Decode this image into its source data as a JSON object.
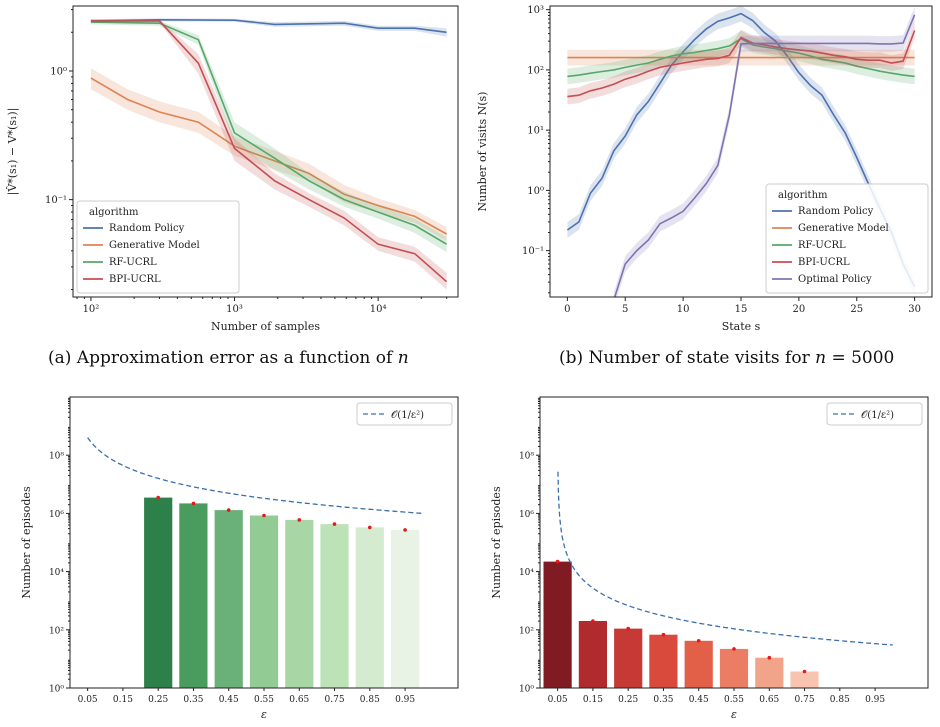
{
  "captions": {
    "a": {
      "prefix": "(a) Approximation error as a function of ",
      "var": "n",
      "suffix": ""
    },
    "b": {
      "prefix": "(b) Number of state visits for ",
      "var": "n",
      "suffix": " = 5000"
    }
  },
  "chart_data": [
    {
      "id": "a",
      "type": "line",
      "xlabel": "Number of samples",
      "ylabel": "|V̂*(s₁) − V*(s₁)|",
      "xscale": "log",
      "yscale": "log",
      "xlim": [
        75,
        36000
      ],
      "ylim": [
        0.0175,
        3.2
      ],
      "xticks": [
        100,
        1000,
        10000
      ],
      "xticklabels": [
        "10²",
        "10³",
        "10⁴"
      ],
      "yticks": [
        0.1,
        1
      ],
      "yticklabels": [
        "10⁻¹",
        "10⁰"
      ],
      "legend": {
        "title": "algorithm",
        "placement": "lower-left"
      },
      "series": [
        {
          "name": "Random Policy",
          "color": "#4c72b0",
          "x": [
            100,
            300,
            1000,
            1900,
            5800,
            10000,
            18000,
            30000
          ],
          "y": [
            2.45,
            2.5,
            2.48,
            2.3,
            2.35,
            2.15,
            2.15,
            2.0
          ],
          "lo": [
            2.38,
            2.43,
            2.41,
            2.2,
            2.25,
            2.05,
            2.05,
            1.85
          ],
          "hi": [
            2.52,
            2.57,
            2.55,
            2.4,
            2.45,
            2.25,
            2.25,
            2.15
          ]
        },
        {
          "name": "Generative Model",
          "color": "#dd8452",
          "x": [
            100,
            180,
            300,
            560,
            1000,
            1900,
            3300,
            5800,
            10000,
            18000,
            30000
          ],
          "y": [
            0.88,
            0.6,
            0.48,
            0.4,
            0.26,
            0.2,
            0.16,
            0.11,
            0.09,
            0.074,
            0.054
          ],
          "lo": [
            0.72,
            0.5,
            0.4,
            0.33,
            0.22,
            0.17,
            0.14,
            0.095,
            0.079,
            0.066,
            0.048
          ],
          "hi": [
            1.05,
            0.72,
            0.58,
            0.48,
            0.31,
            0.24,
            0.19,
            0.13,
            0.102,
            0.083,
            0.061
          ]
        },
        {
          "name": "RF-UCRL",
          "color": "#55a868",
          "x": [
            100,
            300,
            560,
            1000,
            1900,
            3300,
            5800,
            10000,
            18000,
            30000
          ],
          "y": [
            2.4,
            2.35,
            1.75,
            0.33,
            0.21,
            0.14,
            0.1,
            0.08,
            0.063,
            0.045
          ],
          "lo": [
            2.3,
            2.25,
            1.6,
            0.27,
            0.17,
            0.12,
            0.088,
            0.071,
            0.055,
            0.039
          ],
          "hi": [
            2.5,
            2.45,
            1.9,
            0.4,
            0.25,
            0.16,
            0.115,
            0.09,
            0.071,
            0.051
          ]
        },
        {
          "name": "BPI-UCRL",
          "color": "#c44e52",
          "x": [
            100,
            300,
            560,
            1000,
            1900,
            3300,
            5800,
            10000,
            18000,
            30000
          ],
          "y": [
            2.45,
            2.45,
            1.15,
            0.25,
            0.14,
            0.1,
            0.072,
            0.045,
            0.038,
            0.023
          ],
          "lo": [
            2.38,
            2.38,
            0.95,
            0.2,
            0.12,
            0.088,
            0.063,
            0.04,
            0.033,
            0.02
          ],
          "hi": [
            2.52,
            2.52,
            1.35,
            0.3,
            0.16,
            0.112,
            0.082,
            0.051,
            0.043,
            0.027
          ]
        }
      ]
    },
    {
      "id": "b",
      "type": "line",
      "xlabel": "State s",
      "ylabel": "Number of visits N(s)",
      "xscale": "linear",
      "yscale": "log",
      "xlim": [
        -1.5,
        31.5
      ],
      "ylim": [
        0.017,
        1150
      ],
      "xticks": [
        0,
        5,
        10,
        15,
        20,
        25,
        30
      ],
      "xticklabels": [
        "0",
        "5",
        "10",
        "15",
        "20",
        "25",
        "30"
      ],
      "yticks": [
        0.1,
        1,
        10,
        100,
        1000
      ],
      "yticklabels": [
        "10⁻¹",
        "10⁰",
        "10¹",
        "10²",
        "10³"
      ],
      "legend": {
        "title": "algorithm",
        "placement": "lower-right"
      },
      "series": [
        {
          "name": "Random Policy",
          "color": "#4c72b0",
          "x": [
            0,
            1,
            2,
            3,
            4,
            5,
            6,
            7,
            8,
            9,
            10,
            11,
            12,
            13,
            14,
            15,
            16,
            17,
            18,
            19,
            20,
            21,
            22,
            23,
            24,
            25,
            26,
            27,
            28,
            29,
            30
          ],
          "y": [
            0.22,
            0.3,
            0.9,
            1.6,
            4.5,
            8,
            18,
            30,
            60,
            120,
            200,
            320,
            480,
            640,
            730,
            860,
            660,
            420,
            300,
            170,
            90,
            55,
            38,
            18,
            9,
            3.5,
            1.3,
            0.5,
            0.2,
            0.06,
            0.025
          ]
        },
        {
          "name": "Generative Model",
          "color": "#dd8452",
          "x": [
            0,
            30
          ],
          "y": [
            160,
            160
          ]
        },
        {
          "name": "RF-UCRL",
          "color": "#55a868",
          "x": [
            0,
            1,
            2,
            3,
            4,
            5,
            6,
            7,
            8,
            9,
            10,
            11,
            12,
            13,
            14,
            15,
            16,
            17,
            18,
            19,
            20,
            21,
            22,
            23,
            24,
            25,
            26,
            27,
            28,
            29,
            30
          ],
          "y": [
            78,
            82,
            88,
            94,
            100,
            110,
            120,
            130,
            150,
            170,
            185,
            195,
            210,
            225,
            250,
            330,
            260,
            240,
            225,
            205,
            190,
            170,
            150,
            140,
            130,
            115,
            105,
            95,
            88,
            82,
            78
          ]
        },
        {
          "name": "BPI-UCRL",
          "color": "#c44e52",
          "x": [
            0,
            1,
            2,
            3,
            4,
            5,
            6,
            7,
            8,
            9,
            10,
            11,
            12,
            13,
            14,
            15,
            16,
            17,
            18,
            19,
            20,
            21,
            22,
            23,
            24,
            25,
            26,
            27,
            28,
            29,
            30
          ],
          "y": [
            36,
            38,
            45,
            50,
            58,
            70,
            80,
            95,
            110,
            120,
            130,
            140,
            150,
            155,
            175,
            345,
            280,
            260,
            240,
            225,
            215,
            205,
            190,
            175,
            165,
            150,
            145,
            145,
            130,
            140,
            450
          ]
        },
        {
          "name": "Optimal Policy",
          "color": "#8172b2",
          "x": [
            4,
            5,
            6,
            7,
            8,
            9,
            10,
            11,
            12,
            13,
            14,
            15,
            16,
            17,
            18,
            19,
            20,
            21,
            22,
            23,
            24,
            25,
            26,
            27,
            28,
            29,
            30
          ],
          "y": [
            0.015,
            0.06,
            0.1,
            0.15,
            0.28,
            0.35,
            0.45,
            0.75,
            1.3,
            2.6,
            18,
            270,
            275,
            275,
            275,
            275,
            275,
            275,
            275,
            275,
            275,
            275,
            275,
            270,
            270,
            280,
            820
          ]
        }
      ]
    },
    {
      "id": "c",
      "type": "bar",
      "xlabel": "ε",
      "ylabel": "Number of episodes",
      "yscale": "log",
      "ylim": [
        1,
        10000000000.0
      ],
      "yticks": [
        1,
        100,
        10000,
        1000000,
        100000000
      ],
      "yticklabels": [
        "10⁰",
        "10²",
        "10⁴",
        "10⁶",
        "10⁸"
      ],
      "categories": [
        "0.05",
        "0.15",
        "0.25",
        "0.35",
        "0.45",
        "0.55",
        "0.65",
        "0.75",
        "0.85",
        "0.95"
      ],
      "values": [
        null,
        null,
        3500000,
        2200000,
        1300000,
        850000,
        600000,
        430000,
        330000,
        270000
      ],
      "bar_colors": [
        "#ffffff",
        "#ffffff",
        "#2d8049",
        "#4a9b5e",
        "#6ab179",
        "#93cb94",
        "#a9d6a5",
        "#bde2b8",
        "#d4ebcf",
        "#e8f3e5"
      ],
      "marker_color": "#e31a1c",
      "reference_curve": {
        "label": "𝒪(1/ε²)",
        "style": "dashed",
        "color": "#3a6fae",
        "x": [
          0.05,
          1.0
        ],
        "y_at_x1": 1000000
      },
      "legend": {
        "placement": "top-right"
      }
    },
    {
      "id": "d",
      "type": "bar",
      "xlabel": "ε",
      "ylabel": "Number of episodes",
      "yscale": "log",
      "ylim": [
        1,
        10000000000.0
      ],
      "yticks": [
        1,
        100,
        10000,
        1000000,
        100000000
      ],
      "yticklabels": [
        "10⁰",
        "10²",
        "10⁴",
        "10⁶",
        "10⁸"
      ],
      "categories": [
        "0.05",
        "0.15",
        "0.25",
        "0.35",
        "0.45",
        "0.55",
        "0.65",
        "0.75",
        "0.85",
        "0.95"
      ],
      "values": [
        22000,
        200,
        110,
        68,
        42,
        22,
        11,
        3.7,
        null,
        null
      ],
      "bar_colors": [
        "#801b24",
        "#b02a2e",
        "#c63a35",
        "#d94a3c",
        "#e25f48",
        "#ea7d63",
        "#f2a48a",
        "#f8c4b0",
        "#ffffff",
        "#ffffff"
      ],
      "marker_color": "#e31a1c",
      "reference_curve": {
        "label": "𝒪(1/ε²)",
        "style": "dashed",
        "color": "#3a6fae",
        "x_from": 0.051,
        "x_to": 1.0,
        "y_at_x1": 30,
        "asymptote_x": 0.05
      },
      "legend": {
        "placement": "top-right"
      }
    }
  ]
}
